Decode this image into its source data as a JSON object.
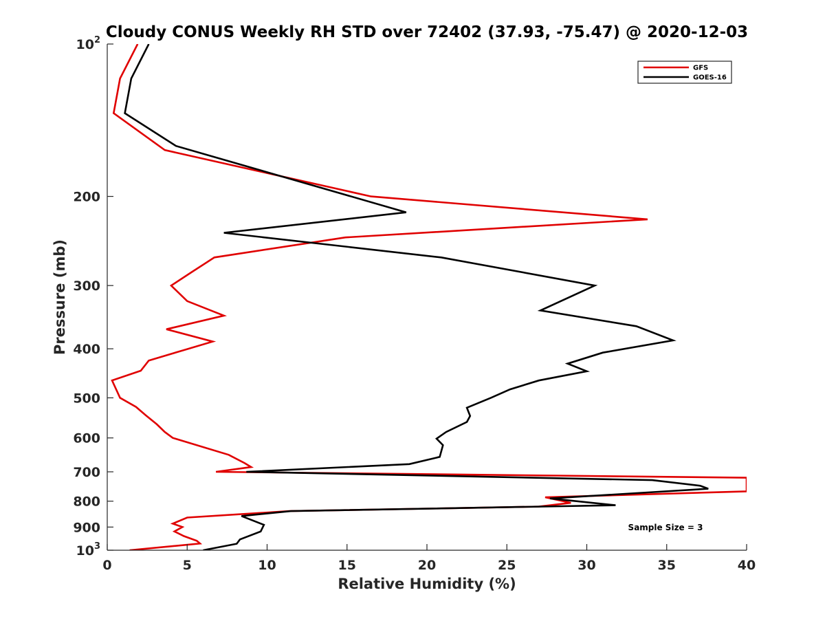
{
  "chart_data": {
    "type": "line",
    "title": "Cloudy CONUS Weekly RH STD over 72402 (37.93, -75.47) @ 2020-12-03",
    "xlabel": "Relative Humidity (%)",
    "ylabel": "Pressure (mb)",
    "xlim": [
      0,
      40
    ],
    "ylim": [
      100,
      1000
    ],
    "y_scale": "log",
    "y_reversed": true,
    "grid": false,
    "legend_position": "top-right",
    "x_ticks": [
      "0",
      "5",
      "10",
      "15",
      "20",
      "25",
      "30",
      "35",
      "40"
    ],
    "y_ticks": [
      {
        "value": 100,
        "base": "10",
        "exp": "2"
      },
      {
        "value": 200,
        "label": "200"
      },
      {
        "value": 300,
        "label": "300"
      },
      {
        "value": 400,
        "label": "400"
      },
      {
        "value": 500,
        "label": "500"
      },
      {
        "value": 600,
        "label": "600"
      },
      {
        "value": 700,
        "label": "700"
      },
      {
        "value": 800,
        "label": "800"
      },
      {
        "value": 900,
        "label": "900"
      },
      {
        "value": 1000,
        "base": "10",
        "exp": "3"
      }
    ],
    "annotation": "Sample Size = 3",
    "series": [
      {
        "name": "GFS",
        "color": "#e00000",
        "points": [
          [
            1.9,
            100
          ],
          [
            0.8,
            117
          ],
          [
            0.4,
            137
          ],
          [
            3.6,
            162
          ],
          [
            16.5,
            200
          ],
          [
            33.8,
            222
          ],
          [
            14.9,
            241
          ],
          [
            6.7,
            264
          ],
          [
            5.3,
            282
          ],
          [
            4.0,
            300
          ],
          [
            5.0,
            322
          ],
          [
            7.3,
            344
          ],
          [
            3.7,
            366
          ],
          [
            6.6,
            387
          ],
          [
            2.6,
            422
          ],
          [
            2.1,
            442
          ],
          [
            0.3,
            462
          ],
          [
            0.8,
            500
          ],
          [
            1.8,
            521
          ],
          [
            2.4,
            541
          ],
          [
            3.1,
            564
          ],
          [
            3.6,
            584
          ],
          [
            4.1,
            600
          ],
          [
            7.6,
            648
          ],
          [
            8.6,
            673
          ],
          [
            9.0,
            685
          ],
          [
            6.8,
            700
          ],
          [
            40.0,
            719
          ],
          [
            40.0,
            765
          ],
          [
            27.4,
            786
          ],
          [
            29.0,
            806
          ],
          [
            27.0,
            820
          ],
          [
            11.4,
            837
          ],
          [
            5.0,
            862
          ],
          [
            4.1,
            886
          ],
          [
            4.7,
            900
          ],
          [
            4.2,
            918
          ],
          [
            4.8,
            938
          ],
          [
            5.6,
            958
          ],
          [
            5.8,
            970
          ],
          [
            1.4,
            1000
          ]
        ]
      },
      {
        "name": "GOES-16",
        "color": "#000000",
        "points": [
          [
            2.6,
            100
          ],
          [
            1.5,
            117
          ],
          [
            1.1,
            137
          ],
          [
            4.3,
            159
          ],
          [
            18.7,
            215
          ],
          [
            7.3,
            236
          ],
          [
            20.9,
            264
          ],
          [
            30.5,
            300
          ],
          [
            27.1,
            336
          ],
          [
            33.1,
            361
          ],
          [
            35.4,
            385
          ],
          [
            31.0,
            407
          ],
          [
            28.8,
            428
          ],
          [
            30.0,
            443
          ],
          [
            27.0,
            462
          ],
          [
            25.2,
            481
          ],
          [
            24.0,
            500
          ],
          [
            22.5,
            523
          ],
          [
            22.7,
            543
          ],
          [
            22.5,
            558
          ],
          [
            21.2,
            584
          ],
          [
            20.6,
            602
          ],
          [
            21.0,
            620
          ],
          [
            20.8,
            654
          ],
          [
            18.9,
            676
          ],
          [
            8.7,
            700
          ],
          [
            34.1,
            727
          ],
          [
            37.1,
            746
          ],
          [
            37.6,
            756
          ],
          [
            27.7,
            790
          ],
          [
            31.8,
            815
          ],
          [
            11.5,
            837
          ],
          [
            8.4,
            856
          ],
          [
            9.8,
            891
          ],
          [
            9.6,
            918
          ],
          [
            8.3,
            952
          ],
          [
            8.1,
            971
          ],
          [
            6.0,
            1000
          ]
        ]
      }
    ]
  }
}
